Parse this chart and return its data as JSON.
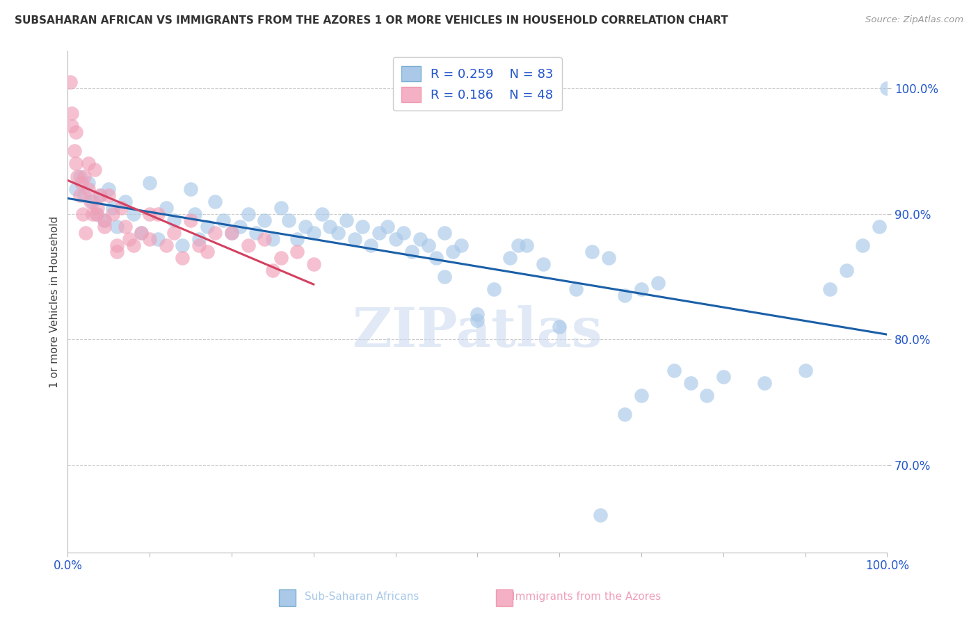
{
  "title": "SUBSAHARAN AFRICAN VS IMMIGRANTS FROM THE AZORES 1 OR MORE VEHICLES IN HOUSEHOLD CORRELATION CHART",
  "source_text": "Source: ZipAtlas.com",
  "ylabel": "1 or more Vehicles in Household",
  "xlim": [
    0.0,
    100.0
  ],
  "ylim": [
    63.0,
    103.0
  ],
  "yticks": [
    70.0,
    80.0,
    90.0,
    100.0
  ],
  "ytick_labels": [
    "70.0%",
    "80.0%",
    "90.0%",
    "100.0%"
  ],
  "blue_color": "#a8c8e8",
  "pink_color": "#f0a0b8",
  "blue_line_color": "#1a5fa8",
  "pink_line_color": "#d44060",
  "legend_color": "#2255cc",
  "watermark": "ZIPatlas",
  "blue_scatter_x": [
    1.0,
    1.5,
    2.0,
    2.5,
    3.0,
    3.5,
    4.0,
    4.5,
    5.0,
    5.5,
    6.0,
    7.0,
    8.0,
    9.0,
    10.0,
    11.0,
    12.0,
    13.0,
    14.0,
    15.0,
    15.5,
    16.0,
    17.0,
    18.0,
    19.0,
    20.0,
    21.0,
    22.0,
    23.0,
    24.0,
    25.0,
    26.0,
    27.0,
    28.0,
    29.0,
    30.0,
    31.0,
    32.0,
    33.0,
    34.0,
    35.0,
    36.0,
    37.0,
    38.0,
    39.0,
    40.0,
    41.0,
    42.0,
    43.0,
    44.0,
    45.0,
    46.0,
    47.0,
    48.0,
    50.0,
    52.0,
    54.0,
    56.0,
    58.0,
    60.0,
    62.0,
    64.0,
    66.0,
    68.0,
    70.0,
    72.0,
    74.0,
    76.0,
    78.0,
    80.0,
    85.0,
    90.0,
    93.0,
    95.0,
    97.0,
    99.0,
    100.0,
    55.0,
    46.0,
    50.0,
    65.0,
    68.0,
    70.0
  ],
  "blue_scatter_y": [
    92.0,
    93.0,
    91.5,
    92.5,
    91.0,
    90.0,
    91.5,
    89.5,
    92.0,
    90.5,
    89.0,
    91.0,
    90.0,
    88.5,
    92.5,
    88.0,
    90.5,
    89.5,
    87.5,
    92.0,
    90.0,
    88.0,
    89.0,
    91.0,
    89.5,
    88.5,
    89.0,
    90.0,
    88.5,
    89.5,
    88.0,
    90.5,
    89.5,
    88.0,
    89.0,
    88.5,
    90.0,
    89.0,
    88.5,
    89.5,
    88.0,
    89.0,
    87.5,
    88.5,
    89.0,
    88.0,
    88.5,
    87.0,
    88.0,
    87.5,
    86.5,
    88.5,
    87.0,
    87.5,
    81.5,
    84.0,
    86.5,
    87.5,
    86.0,
    81.0,
    84.0,
    87.0,
    86.5,
    83.5,
    84.0,
    84.5,
    77.5,
    76.5,
    75.5,
    77.0,
    76.5,
    77.5,
    84.0,
    85.5,
    87.5,
    89.0,
    100.0,
    87.5,
    85.0,
    82.0,
    66.0,
    74.0,
    75.5
  ],
  "pink_scatter_x": [
    0.3,
    0.5,
    0.8,
    1.0,
    1.2,
    1.5,
    1.7,
    2.0,
    2.2,
    2.5,
    2.8,
    3.0,
    3.3,
    3.6,
    4.0,
    4.5,
    5.0,
    5.5,
    6.0,
    6.5,
    7.0,
    7.5,
    8.0,
    9.0,
    10.0,
    11.0,
    12.0,
    13.0,
    14.0,
    15.0,
    16.0,
    17.0,
    18.0,
    20.0,
    22.0,
    24.0,
    25.0,
    26.0,
    28.0,
    30.0,
    0.5,
    1.0,
    1.8,
    2.5,
    3.5,
    4.5,
    6.0,
    10.0
  ],
  "pink_scatter_y": [
    100.5,
    98.0,
    95.0,
    96.5,
    93.0,
    91.5,
    92.5,
    93.0,
    88.5,
    94.0,
    91.0,
    90.0,
    93.5,
    90.5,
    91.5,
    89.0,
    91.5,
    90.0,
    87.5,
    90.5,
    89.0,
    88.0,
    87.5,
    88.5,
    88.0,
    90.0,
    87.5,
    88.5,
    86.5,
    89.5,
    87.5,
    87.0,
    88.5,
    88.5,
    87.5,
    88.0,
    85.5,
    86.5,
    87.0,
    86.0,
    97.0,
    94.0,
    90.0,
    92.0,
    90.0,
    89.5,
    87.0,
    90.0
  ]
}
